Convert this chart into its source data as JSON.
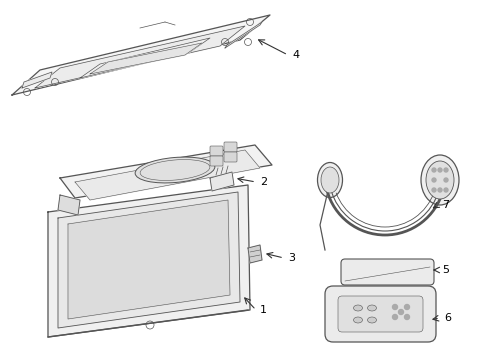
{
  "background_color": "#ffffff",
  "line_color": "#555555",
  "label_color": "#000000",
  "arrow_color": "#333333",
  "fill_light": "#f8f8f8",
  "fill_mid": "#eeeeee",
  "fill_dark": "#e0e0e0",
  "figsize": [
    4.89,
    3.6
  ],
  "dpi": 100
}
